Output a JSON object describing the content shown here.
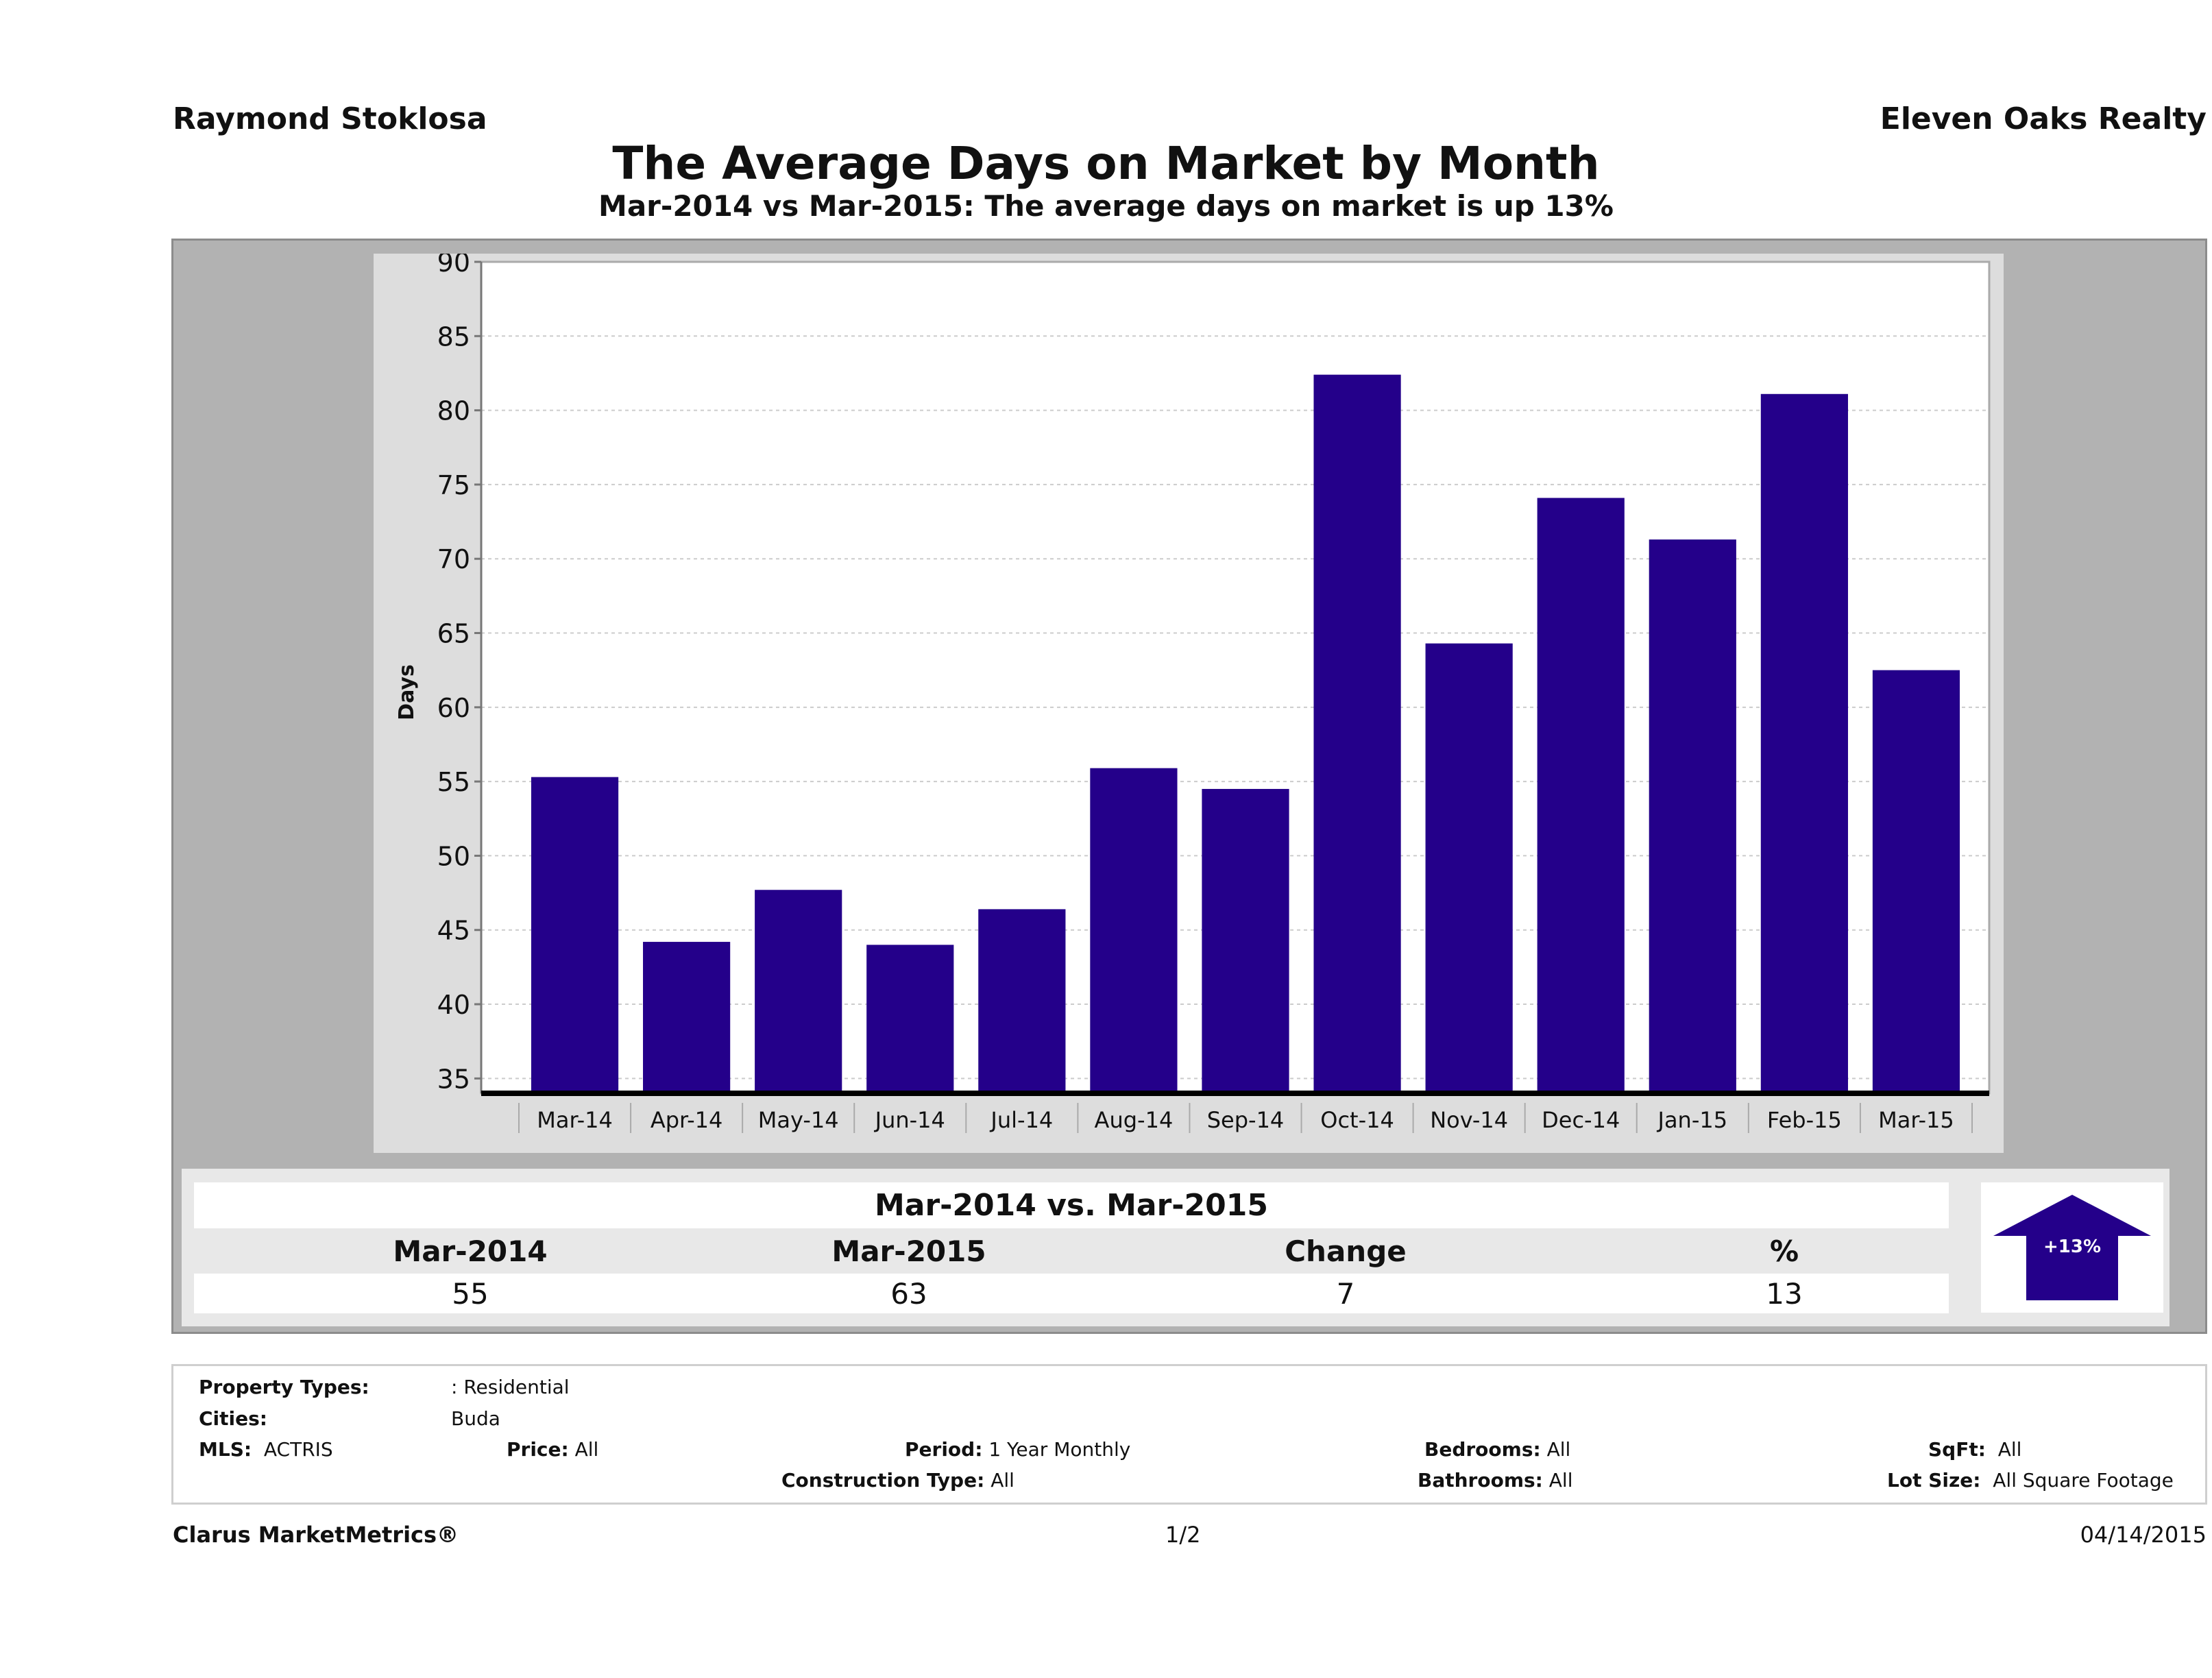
{
  "header": {
    "agent_name": "Raymond Stoklosa",
    "company_name": "Eleven Oaks Realty",
    "title": "The Average Days on Market by Month",
    "subtitle": "Mar-2014 vs Mar-2015: The average days on market is up 13%"
  },
  "colors": {
    "bar": "#24008a",
    "outer_panel": "#b2b2b2",
    "chart_panel": "#dddddd",
    "plot_bg": "#ffffff",
    "arrow": "#24008a"
  },
  "chart_data": {
    "type": "bar",
    "title": "The Average Days on Market by Month",
    "subtitle": "Mar-2014 vs Mar-2015: The average days on market is up 13%",
    "xlabel": "",
    "ylabel": "Days",
    "categories": [
      "Mar-14",
      "Apr-14",
      "May-14",
      "Jun-14",
      "Jul-14",
      "Aug-14",
      "Sep-14",
      "Oct-14",
      "Nov-14",
      "Dec-14",
      "Jan-15",
      "Feb-15",
      "Mar-15"
    ],
    "values": [
      55.3,
      44.2,
      47.7,
      44.0,
      46.4,
      55.9,
      54.5,
      82.4,
      64.3,
      74.1,
      71.3,
      81.1,
      62.5
    ],
    "ylim": [
      34,
      90
    ],
    "yticks": [
      35,
      40,
      45,
      50,
      55,
      60,
      65,
      70,
      75,
      80,
      85,
      90
    ],
    "grid": true,
    "legend": "none"
  },
  "summary": {
    "title": "Mar-2014 vs. Mar-2015",
    "headers": [
      "Mar-2014",
      "Mar-2015",
      "Change",
      "%"
    ],
    "values": [
      "55",
      "63",
      "7",
      "13"
    ],
    "arrow_label": "+13%",
    "arrow_direction": "up-arrow-icon"
  },
  "filters": {
    "property_types_label": "Property Types:",
    "property_types_value": ": Residential",
    "cities_label": "Cities:",
    "cities_value": "Buda",
    "mls_label": "MLS:",
    "mls_value": "ACTRIS",
    "price_label": "Price:",
    "price_value": "All",
    "period_label": "Period:",
    "period_value": "1 Year Monthly",
    "construction_label": "Construction Type:",
    "construction_value": "All",
    "bedrooms_label": "Bedrooms:",
    "bedrooms_value": "All",
    "bathrooms_label": "Bathrooms:",
    "bathrooms_value": "All",
    "sqft_label": "SqFt:",
    "sqft_value": "All",
    "lot_label": "Lot Size:",
    "lot_value": "All Square Footage"
  },
  "footer": {
    "brand": "Clarus MarketMetrics®",
    "page": "1/2",
    "date": "04/14/2015"
  }
}
